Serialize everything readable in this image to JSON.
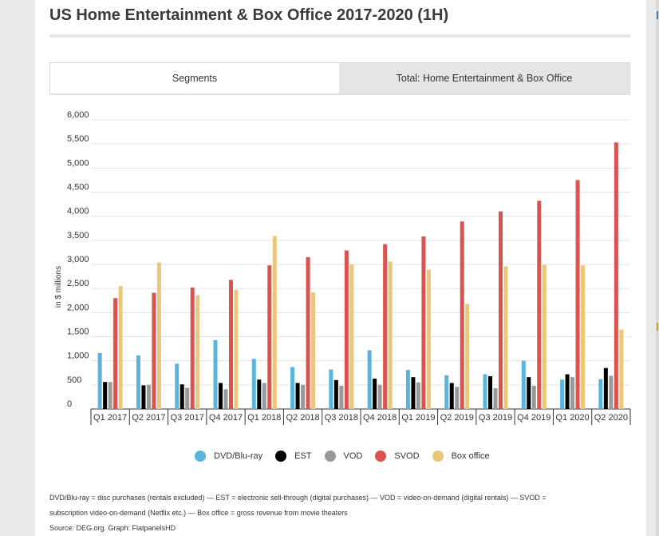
{
  "page": {
    "title": "US Home Entertainment & Box Office 2017-2020 (1H)",
    "footnote_line1": "DVD/Blu-ray = disc purchases (rentals excluded) — EST = electronic sell-through (digital purchases) — VOD = video-on-demand (digital rentals) — SVOD =",
    "footnote_line2": "subscription video-on-demand (Netflix etc.) — Box office = gross revenue from movie theaters",
    "source": "Source: DEG.org. Graph: FlatpanelsHD"
  },
  "tabs": [
    {
      "label": "Segments",
      "active": true
    },
    {
      "label": "Total: Home Entertainment & Box Office",
      "active": false
    }
  ],
  "chart_data": {
    "type": "bar",
    "title": "US Home Entertainment & Box Office 2017-2020 (1H)",
    "ylabel": "in $ millions",
    "xlabel": "",
    "ylim": [
      0,
      6000
    ],
    "yticks": [
      0,
      500,
      1000,
      1500,
      2000,
      2500,
      3000,
      3500,
      4000,
      4500,
      5000,
      5500,
      6000
    ],
    "ytick_labels": [
      "0",
      "500",
      "1,000",
      "1,500",
      "2,000",
      "2,500",
      "3,000",
      "3,500",
      "4,000",
      "4,500",
      "5,000",
      "5,500",
      "6,000"
    ],
    "grid": true,
    "legend_position": "bottom",
    "categories": [
      "Q1 2017",
      "Q2 2017",
      "Q3 2017",
      "Q4 2017",
      "Q1 2018",
      "Q2 2018",
      "Q3 2018",
      "Q4 2018",
      "Q1 2019",
      "Q2 2019",
      "Q3 2019",
      "Q4 2019",
      "Q1 2020",
      "Q2 2020"
    ],
    "series": [
      {
        "name": "DVD/Blu-ray",
        "color": "#5ab4e0",
        "values": [
          1160,
          1110,
          940,
          1430,
          1040,
          870,
          820,
          1220,
          810,
          700,
          720,
          1000,
          610,
          620
        ]
      },
      {
        "name": "EST",
        "color": "#000000",
        "values": [
          560,
          490,
          510,
          540,
          610,
          540,
          600,
          630,
          660,
          540,
          680,
          660,
          720,
          850
        ]
      },
      {
        "name": "VOD",
        "color": "#999999",
        "values": [
          560,
          500,
          440,
          410,
          540,
          500,
          480,
          500,
          550,
          460,
          430,
          480,
          660,
          690
        ]
      },
      {
        "name": "SVOD",
        "color": "#d9534f",
        "values": [
          2300,
          2410,
          2520,
          2680,
          2980,
          3150,
          3290,
          3420,
          3580,
          3890,
          4100,
          4320,
          4750,
          5530
        ]
      },
      {
        "name": "Box office",
        "color": "#eac77a",
        "values": [
          2550,
          3040,
          2360,
          2470,
          3590,
          2420,
          3000,
          3060,
          2890,
          2180,
          2960,
          2990,
          2980,
          1650
        ]
      }
    ]
  }
}
